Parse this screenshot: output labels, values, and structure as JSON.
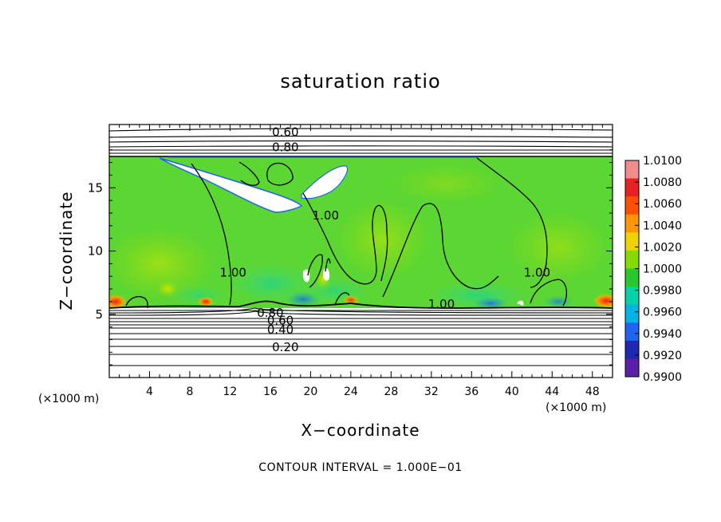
{
  "chart_data": {
    "type": "heatmap",
    "title": "saturation ratio",
    "xlabel": "X−coordinate",
    "ylabel": "Z−coordinate",
    "x_unit": "(×1000 m)",
    "z_unit": "(×1000 m)",
    "xlim": [
      0,
      50
    ],
    "ylim": [
      0,
      20
    ],
    "x_ticks": [
      4,
      8,
      12,
      16,
      20,
      24,
      28,
      32,
      36,
      40,
      44,
      48
    ],
    "y_ticks": [
      5,
      10,
      15
    ],
    "colorbar": {
      "levels": [
        "1.0100",
        "1.0080",
        "1.0060",
        "1.0040",
        "1.0020",
        "1.0000",
        "0.9980",
        "0.9960",
        "0.9940",
        "0.9920",
        "0.9900"
      ],
      "colors": [
        "#f08c8c",
        "#e82020",
        "#ff5000",
        "#ff9600",
        "#f0d200",
        "#82dc00",
        "#28c828",
        "#00d2aa",
        "#00b4e6",
        "#1e64f0",
        "#1e28b4",
        "#5a1eaa"
      ]
    },
    "contour_labels": [
      {
        "text": "0.60",
        "x": 17.5,
        "z": 19.4
      },
      {
        "text": "0.80",
        "x": 17.5,
        "z": 18.2
      },
      {
        "text": "1.00",
        "x": 21.5,
        "z": 12.8
      },
      {
        "text": "1.00",
        "x": 12.3,
        "z": 8.3
      },
      {
        "text": "1.00",
        "x": 42.5,
        "z": 8.3
      },
      {
        "text": "1.00",
        "x": 33.0,
        "z": 5.8
      },
      {
        "text": "0.80",
        "x": 16.0,
        "z": 5.1
      },
      {
        "text": "0.60",
        "x": 17.0,
        "z": 4.5
      },
      {
        "text": "0.40",
        "x": 17.0,
        "z": 3.8
      },
      {
        "text": "0.20",
        "x": 17.5,
        "z": 2.4
      }
    ],
    "contour_interval_text": "CONTOUR INTERVAL = 1.000E−01"
  }
}
